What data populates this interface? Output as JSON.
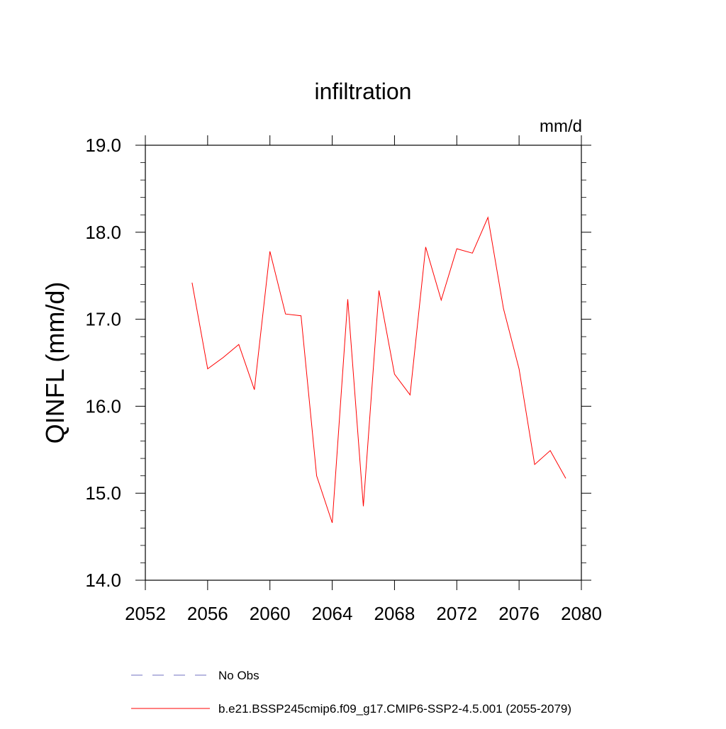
{
  "chart_data": {
    "type": "line",
    "title": "infiltration",
    "units_label": "mm/d",
    "ylabel": "QINFL  (mm/d)",
    "xlabel": "",
    "xlim": [
      2052,
      2080
    ],
    "ylim": [
      14.0,
      19.0
    ],
    "x_ticks": [
      2052,
      2056,
      2060,
      2064,
      2068,
      2072,
      2076,
      2080
    ],
    "x_tick_labels": [
      "2052",
      "2056",
      "2060",
      "2064",
      "2068",
      "2072",
      "2076",
      "2080"
    ],
    "y_ticks": [
      14.0,
      15.0,
      16.0,
      17.0,
      18.0,
      19.0
    ],
    "y_tick_labels": [
      "14.0",
      "15.0",
      "16.0",
      "17.0",
      "18.0",
      "19.0"
    ],
    "grid": false,
    "legend_position": "bottom",
    "series": [
      {
        "name": "b.e21.BSSP245cmip6.f09_g17.CMIP6-SSP2-4.5.001 (2055-2079)",
        "color": "#ff0000",
        "style": "solid",
        "x": [
          2055,
          2056,
          2057,
          2058,
          2059,
          2060,
          2061,
          2062,
          2063,
          2064,
          2065,
          2066,
          2067,
          2068,
          2069,
          2070,
          2071,
          2072,
          2073,
          2074,
          2075,
          2076,
          2077,
          2078,
          2079
        ],
        "y": [
          17.42,
          16.43,
          16.56,
          16.71,
          16.19,
          17.78,
          17.06,
          17.04,
          15.2,
          14.66,
          17.23,
          14.85,
          17.33,
          16.37,
          16.13,
          17.83,
          17.22,
          17.81,
          17.76,
          18.17,
          17.12,
          16.43,
          15.33,
          15.49,
          15.17
        ]
      }
    ],
    "legend": [
      {
        "label": "No Obs",
        "color": "#7070c0",
        "style": "dashed"
      },
      {
        "label": "b.e21.BSSP245cmip6.f09_g17.CMIP6-SSP2-4.5.001 (2055-2079)",
        "color": "#ff0000",
        "style": "solid"
      }
    ]
  }
}
